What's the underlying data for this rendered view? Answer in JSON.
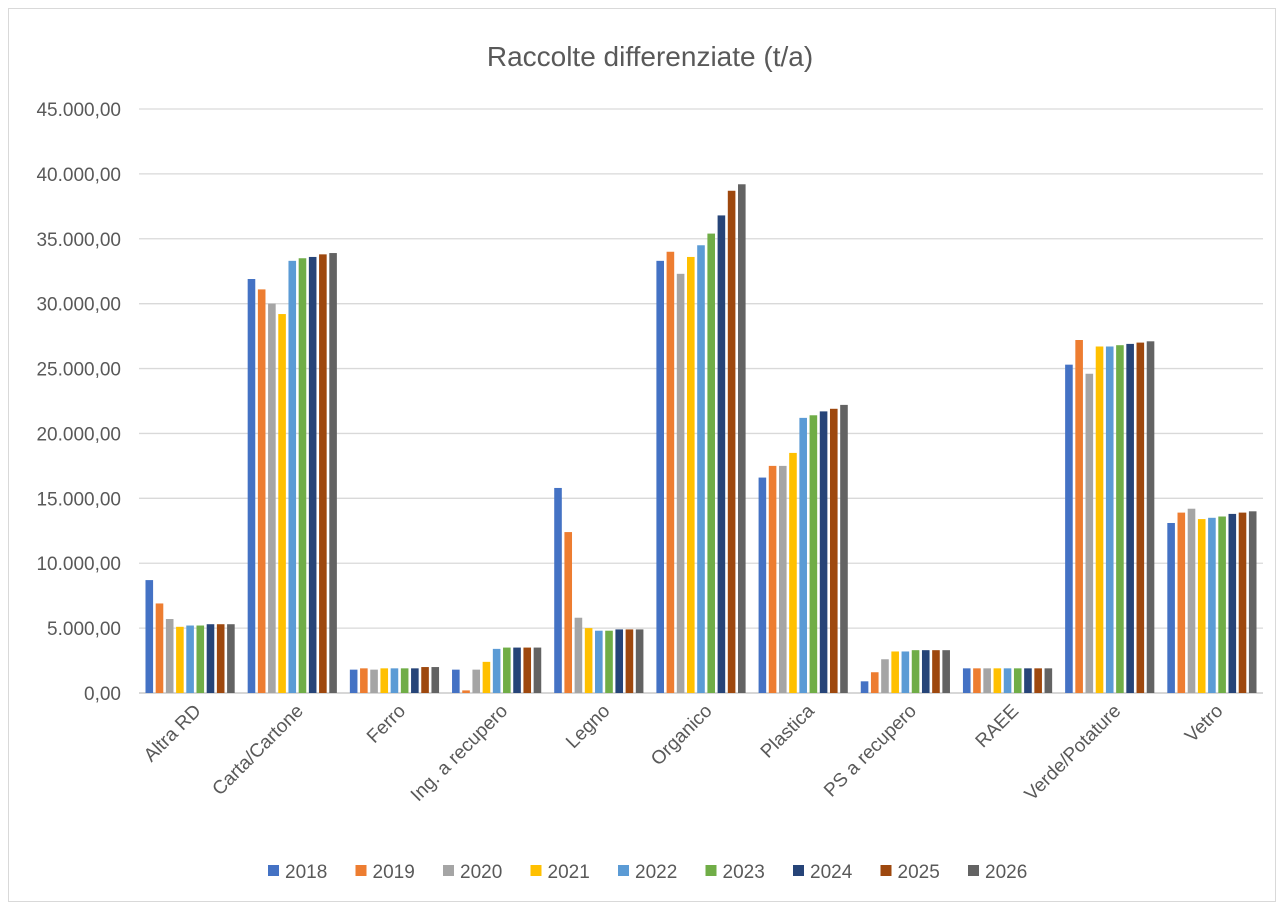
{
  "chart_data": {
    "type": "bar",
    "title": "Raccolte differenziate (t/a)",
    "xlabel": "",
    "ylabel": "",
    "ylim": [
      0,
      45000
    ],
    "yticks": [
      0,
      5000,
      10000,
      15000,
      20000,
      25000,
      30000,
      35000,
      40000,
      45000
    ],
    "ytick_labels": [
      "0,00",
      "5.000,00",
      "10.000,00",
      "15.000,00",
      "20.000,00",
      "25.000,00",
      "30.000,00",
      "35.000,00",
      "40.000,00",
      "45.000,00"
    ],
    "grid": true,
    "legend_position": "bottom",
    "categories": [
      "Altra RD",
      "Carta/Cartone",
      "Ferro",
      "Ing. a recupero",
      "Legno",
      "Organico",
      "Plastica",
      "PS a recupero",
      "RAEE",
      "Verde/Potature",
      "Vetro"
    ],
    "series": [
      {
        "name": "2018",
        "color": "#4472C4",
        "values": [
          8700,
          31900,
          1800,
          1800,
          15800,
          33300,
          16600,
          900,
          1900,
          25300,
          13100
        ]
      },
      {
        "name": "2019",
        "color": "#ED7D31",
        "values": [
          6900,
          31100,
          1900,
          200,
          12400,
          34000,
          17500,
          1600,
          1900,
          27200,
          13900
        ]
      },
      {
        "name": "2020",
        "color": "#A5A5A5",
        "values": [
          5700,
          30000,
          1800,
          1800,
          5800,
          32300,
          17500,
          2600,
          1900,
          24600,
          14200
        ]
      },
      {
        "name": "2021",
        "color": "#FFC000",
        "values": [
          5100,
          29200,
          1900,
          2400,
          5000,
          33600,
          18500,
          3200,
          1900,
          26700,
          13400
        ]
      },
      {
        "name": "2022",
        "color": "#5B9BD5",
        "values": [
          5200,
          33300,
          1900,
          3400,
          4800,
          34500,
          21200,
          3200,
          1900,
          26700,
          13500
        ]
      },
      {
        "name": "2023",
        "color": "#70AD47",
        "values": [
          5200,
          33500,
          1900,
          3500,
          4800,
          35400,
          21400,
          3300,
          1900,
          26800,
          13600
        ]
      },
      {
        "name": "2024",
        "color": "#264478",
        "values": [
          5300,
          33600,
          1900,
          3500,
          4900,
          36800,
          21700,
          3300,
          1900,
          26900,
          13800
        ]
      },
      {
        "name": "2025",
        "color": "#9E480E",
        "values": [
          5300,
          33800,
          2000,
          3500,
          4900,
          38700,
          21900,
          3300,
          1900,
          27000,
          13900
        ]
      },
      {
        "name": "2026",
        "color": "#636363",
        "values": [
          5300,
          33900,
          2000,
          3500,
          4900,
          39200,
          22200,
          3300,
          1900,
          27100,
          14000
        ]
      }
    ]
  }
}
